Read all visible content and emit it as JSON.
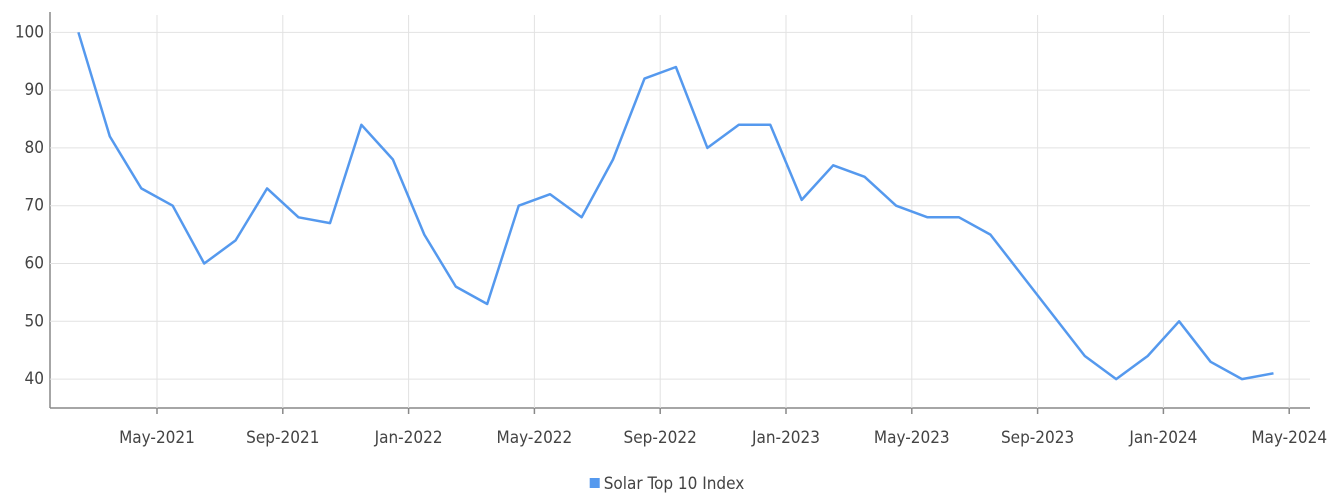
{
  "chart_data": {
    "type": "line",
    "x": [
      "2021-02",
      "2021-03",
      "2021-04",
      "2021-05",
      "2021-06",
      "2021-07",
      "2021-08",
      "2021-09",
      "2021-10",
      "2021-11",
      "2021-12",
      "2022-01",
      "2022-02",
      "2022-03",
      "2022-04",
      "2022-05",
      "2022-06",
      "2022-07",
      "2022-08",
      "2022-09",
      "2022-10",
      "2022-11",
      "2022-12",
      "2023-01",
      "2023-02",
      "2023-03",
      "2023-04",
      "2023-05",
      "2023-06",
      "2023-07",
      "2023-08",
      "2023-09",
      "2023-10",
      "2023-11",
      "2023-12",
      "2024-01",
      "2024-02",
      "2024-03",
      "2024-04"
    ],
    "series": [
      {
        "name": "Solar Top 10 Index",
        "color": "#5599ee",
        "values": [
          100,
          82,
          73,
          70,
          60,
          64,
          73,
          68,
          67,
          84,
          78,
          65,
          56,
          53,
          70,
          72,
          68,
          78,
          92,
          94,
          80,
          84,
          84,
          71,
          77,
          75,
          70,
          68,
          68,
          65,
          58,
          51,
          44,
          40,
          44,
          50,
          43,
          40,
          41
        ]
      }
    ],
    "ylim": [
      35,
      103
    ],
    "yticks": [
      40,
      50,
      60,
      70,
      80,
      90,
      100
    ],
    "xticks": [
      {
        "value": "2021-05",
        "label": "May-2021"
      },
      {
        "value": "2021-09",
        "label": "Sep-2021"
      },
      {
        "value": "2022-01",
        "label": "Jan-2022"
      },
      {
        "value": "2022-05",
        "label": "May-2022"
      },
      {
        "value": "2022-09",
        "label": "Sep-2022"
      },
      {
        "value": "2023-01",
        "label": "Jan-2023"
      },
      {
        "value": "2023-05",
        "label": "May-2023"
      },
      {
        "value": "2023-09",
        "label": "Sep-2023"
      },
      {
        "value": "2024-01",
        "label": "Jan-2024"
      },
      {
        "value": "2024-05",
        "label": "May-2024"
      }
    ],
    "grid": true,
    "legend": "bottom"
  }
}
